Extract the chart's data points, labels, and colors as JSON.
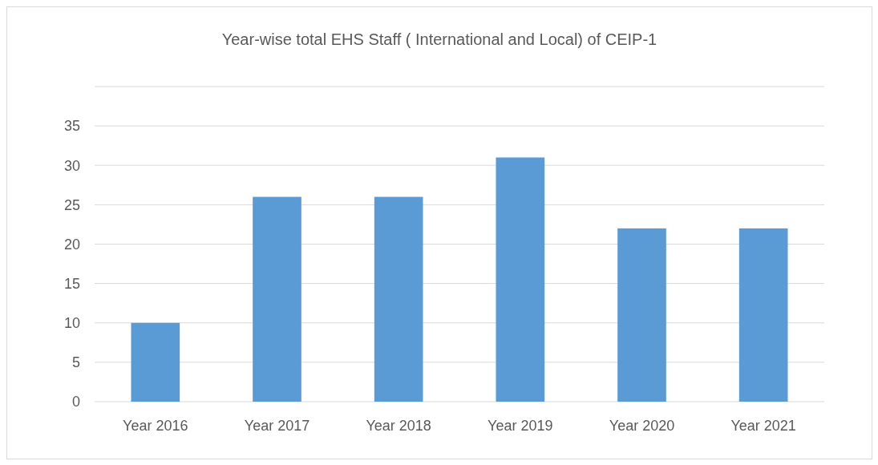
{
  "chart_data": {
    "type": "bar",
    "title": "Year-wise total EHS Staff ( International and Local) of CEIP-1",
    "categories": [
      "Year 2016",
      "Year 2017",
      "Year 2018",
      "Year 2019",
      "Year 2020",
      "Year 2021"
    ],
    "values": [
      10,
      26,
      26,
      31,
      22,
      22
    ],
    "color": "#5b9bd5",
    "ylim": [
      0,
      40
    ],
    "yticks": [
      0,
      5,
      10,
      15,
      20,
      25,
      30,
      35,
      {
        "value": 40,
        "label": null
      }
    ],
    "grid": "y"
  }
}
